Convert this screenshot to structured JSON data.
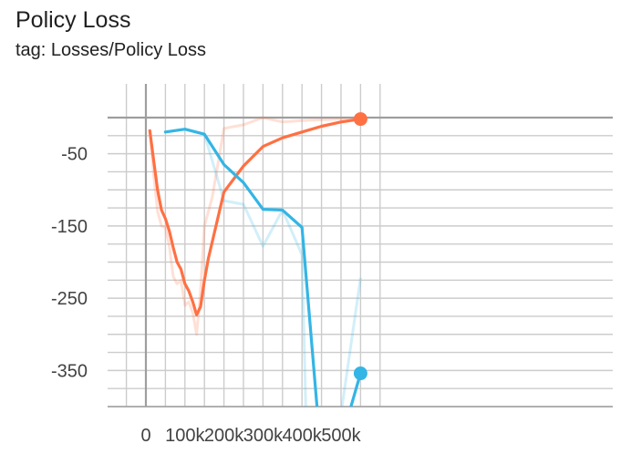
{
  "header": {
    "title": "Policy Loss",
    "tag": "tag: Losses/Policy Loss"
  },
  "chart_data": {
    "type": "line",
    "title": "Policy Loss",
    "subtitle": "tag: Losses/Policy Loss",
    "xlabel": "",
    "ylabel": "",
    "xlim": [
      -50000,
      610000
    ],
    "ylim": [
      -400,
      10
    ],
    "x_ticks": [
      0,
      100000,
      200000,
      300000,
      400000,
      500000
    ],
    "x_tick_labels": [
      "0",
      "100k",
      "200k",
      "300k",
      "400k",
      "500k"
    ],
    "y_ticks": [
      -50,
      -150,
      -250,
      -350
    ],
    "y_tick_labels": [
      "-50",
      "-150",
      "-250",
      "-350"
    ],
    "grid": true,
    "series": [
      {
        "color": "#ff7043",
        "smoothed": [
          [
            10000,
            -18
          ],
          [
            20000,
            -60
          ],
          [
            30000,
            -100
          ],
          [
            40000,
            -128
          ],
          [
            50000,
            -140
          ],
          [
            60000,
            -157
          ],
          [
            70000,
            -180
          ],
          [
            80000,
            -200
          ],
          [
            90000,
            -210
          ],
          [
            100000,
            -230
          ],
          [
            110000,
            -240
          ],
          [
            120000,
            -255
          ],
          [
            130000,
            -273
          ],
          [
            140000,
            -262
          ],
          [
            150000,
            -225
          ],
          [
            160000,
            -195
          ],
          [
            200000,
            -103
          ],
          [
            250000,
            -67
          ],
          [
            300000,
            -40
          ],
          [
            350000,
            -28
          ],
          [
            400000,
            -20
          ],
          [
            450000,
            -12
          ],
          [
            500000,
            -6
          ],
          [
            550000,
            -2
          ]
        ],
        "raw": [
          [
            10000,
            -18
          ],
          [
            20000,
            -80
          ],
          [
            30000,
            -130
          ],
          [
            40000,
            -150
          ],
          [
            50000,
            -152
          ],
          [
            60000,
            -178
          ],
          [
            70000,
            -220
          ],
          [
            80000,
            -230
          ],
          [
            90000,
            -225
          ],
          [
            100000,
            -260
          ],
          [
            110000,
            -255
          ],
          [
            120000,
            -270
          ],
          [
            130000,
            -300
          ],
          [
            140000,
            -240
          ],
          [
            150000,
            -150
          ],
          [
            160000,
            -130
          ],
          [
            170000,
            -110
          ],
          [
            200000,
            -15
          ],
          [
            250000,
            -10
          ],
          [
            300000,
            0
          ],
          [
            350000,
            -6
          ],
          [
            400000,
            -4
          ],
          [
            450000,
            -3
          ],
          [
            500000,
            -2
          ],
          [
            550000,
            -1
          ]
        ]
      },
      {
        "color": "#33b5e5",
        "smoothed": [
          [
            50000,
            -20
          ],
          [
            100000,
            -16
          ],
          [
            150000,
            -23
          ],
          [
            200000,
            -65
          ],
          [
            250000,
            -90
          ],
          [
            300000,
            -127
          ],
          [
            350000,
            -128
          ],
          [
            400000,
            -152
          ],
          [
            440000,
            -410
          ],
          [
            520000,
            -410
          ],
          [
            550000,
            -354
          ]
        ],
        "raw": [
          [
            150000,
            -23
          ],
          [
            200000,
            -115
          ],
          [
            250000,
            -120
          ],
          [
            300000,
            -178
          ],
          [
            350000,
            -128
          ],
          [
            400000,
            -190
          ],
          [
            410000,
            -410
          ],
          [
            500000,
            -410
          ],
          [
            550000,
            -222
          ]
        ]
      }
    ]
  }
}
